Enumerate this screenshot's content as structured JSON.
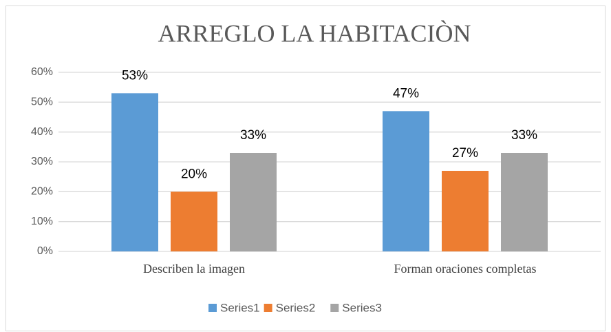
{
  "chart_data": {
    "type": "bar",
    "title": "ARREGLO LA HABITACIÒN",
    "categories": [
      "Describen la imagen",
      "Forman oraciones completas"
    ],
    "series": [
      {
        "name": "Series1",
        "color": "#5b9bd5",
        "values": [
          53,
          47
        ],
        "value_labels": [
          "53%",
          "47%"
        ]
      },
      {
        "name": "Series2",
        "color": "#ed7d31",
        "values": [
          20,
          27
        ],
        "value_labels": [
          "20%",
          "27%"
        ]
      },
      {
        "name": "Series3",
        "color": "#a5a5a5",
        "values": [
          33,
          33
        ],
        "value_labels": [
          "33%",
          "33%"
        ]
      }
    ],
    "ylim": [
      0,
      60
    ],
    "yticks": [
      {
        "value": 0,
        "label": "0%"
      },
      {
        "value": 10,
        "label": "10%"
      },
      {
        "value": 20,
        "label": "20%"
      },
      {
        "value": 30,
        "label": "30%"
      },
      {
        "value": 40,
        "label": "40%"
      },
      {
        "value": 50,
        "label": "50%"
      },
      {
        "value": 60,
        "label": "60%"
      }
    ],
    "grid": true,
    "legend": "bottom"
  }
}
